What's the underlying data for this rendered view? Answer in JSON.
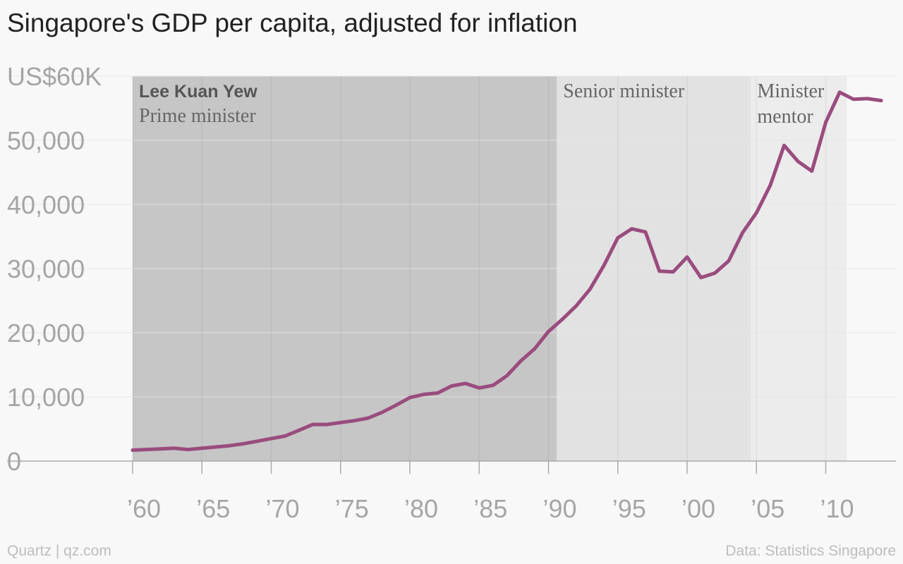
{
  "header": {
    "title": "Singapore's GDP per capita, adjusted for inflation"
  },
  "footer": {
    "source_left": "Quartz | qz.com",
    "source_right": "Data: Statistics Singapore"
  },
  "colors": {
    "line": "#9a4c7e",
    "band_pm": "#c6c6c6",
    "band_senior": "#e2e2e2",
    "band_mentor": "#ececec",
    "background": "#f8f8f8",
    "gridline": "#e6e6e6",
    "axis": "#aaaaaa"
  },
  "chart_data": {
    "type": "line",
    "title": "Singapore's GDP per capita, adjusted for inflation",
    "xlabel": "",
    "ylabel": "",
    "xlim": [
      1960,
      2014
    ],
    "ylim": [
      0,
      60000
    ],
    "grid": true,
    "y_ticks": [
      {
        "value": 0,
        "label": "0"
      },
      {
        "value": 10000,
        "label": "10,000"
      },
      {
        "value": 20000,
        "label": "20,000"
      },
      {
        "value": 30000,
        "label": "30,000"
      },
      {
        "value": 40000,
        "label": "40,000"
      },
      {
        "value": 50000,
        "label": "50,000"
      },
      {
        "value": 60000,
        "label": "US$60K"
      }
    ],
    "x_ticks": [
      {
        "value": 1960,
        "label": "’60"
      },
      {
        "value": 1965,
        "label": "’65"
      },
      {
        "value": 1970,
        "label": "’70"
      },
      {
        "value": 1975,
        "label": "’75"
      },
      {
        "value": 1980,
        "label": "’80"
      },
      {
        "value": 1985,
        "label": "’85"
      },
      {
        "value": 1990,
        "label": "’90"
      },
      {
        "value": 1995,
        "label": "’95"
      },
      {
        "value": 2000,
        "label": "’00"
      },
      {
        "value": 2005,
        "label": "’05"
      },
      {
        "value": 2010,
        "label": "’10"
      }
    ],
    "bands": [
      {
        "start": 1960,
        "end": 1990.6,
        "name": "Lee Kuan Yew",
        "label": "Prime minister",
        "color": "#c6c6c6"
      },
      {
        "start": 1990.6,
        "end": 2004.6,
        "name": "",
        "label": "Senior minister",
        "color": "#e2e2e2"
      },
      {
        "start": 2004.6,
        "end": 2011.5,
        "name": "",
        "label": "Minister\nmentor",
        "color": "#ececec"
      }
    ],
    "series": [
      {
        "color": "#9a4c7e",
        "x": [
          1960,
          1961,
          1962,
          1963,
          1964,
          1965,
          1966,
          1967,
          1968,
          1969,
          1970,
          1971,
          1972,
          1973,
          1974,
          1975,
          1976,
          1977,
          1978,
          1979,
          1980,
          1981,
          1982,
          1983,
          1984,
          1985,
          1986,
          1987,
          1988,
          1989,
          1990,
          1991,
          1992,
          1993,
          1994,
          1995,
          1996,
          1997,
          1998,
          1999,
          2000,
          2001,
          2002,
          2003,
          2004,
          2005,
          2006,
          2007,
          2008,
          2009,
          2010,
          2011,
          2012,
          2013,
          2014
        ],
        "values": [
          1700,
          1800,
          1900,
          2000,
          1800,
          2000,
          2200,
          2400,
          2700,
          3100,
          3500,
          3900,
          4800,
          5700,
          5700,
          6000,
          6300,
          6700,
          7600,
          8700,
          9900,
          10400,
          10600,
          11700,
          12100,
          11400,
          11800,
          13300,
          15600,
          17500,
          20200,
          22100,
          24200,
          26800,
          30500,
          34800,
          36200,
          35700,
          29600,
          29500,
          31800,
          28600,
          29300,
          31200,
          35600,
          38700,
          43000,
          49200,
          46700,
          45200,
          52800,
          57500,
          56400,
          56500,
          56200
        ]
      }
    ]
  }
}
